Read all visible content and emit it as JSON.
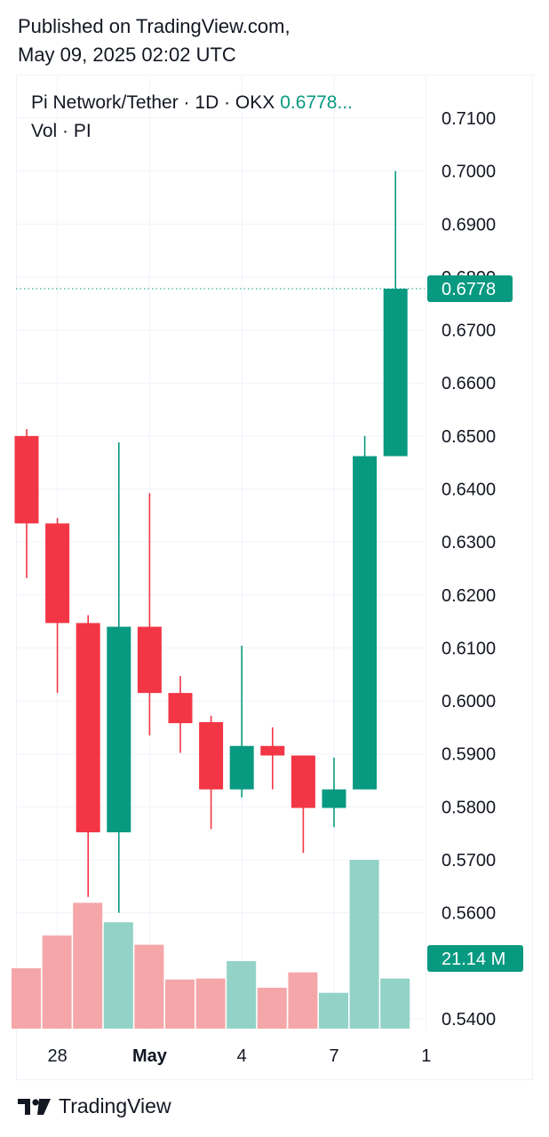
{
  "published": {
    "line1": "Published on TradingView.com,",
    "line2": "May 09, 2025 02:02 UTC"
  },
  "legend": {
    "symbol": "Pi Network/Tether · 1D · OKX",
    "last_price": "0.6778...",
    "volume_label": "Vol · PI"
  },
  "colors": {
    "up": "#089981",
    "down": "#f23645",
    "vol_up": "#92d2c7",
    "vol_down": "#f5a6a8",
    "grid": "#f0f3fa",
    "text": "#131722"
  },
  "chart_data": {
    "type": "candlestick",
    "title": "Pi Network/Tether · 1D · OKX",
    "y_ticks": [
      "0.7100",
      "0.7000",
      "0.6900",
      "0.6800",
      "0.6700",
      "0.6600",
      "0.6500",
      "0.6400",
      "0.6300",
      "0.6200",
      "0.6100",
      "0.6000",
      "0.5900",
      "0.5800",
      "0.5700",
      "0.5600",
      "0.5400"
    ],
    "ylim": [
      0.5385,
      0.712
    ],
    "x_ticks": [
      {
        "label": "28",
        "index": 1
      },
      {
        "label": "May",
        "index": 4
      },
      {
        "label": "4",
        "index": 7
      },
      {
        "label": "7",
        "index": 10
      },
      {
        "label": "1",
        "index": 13
      }
    ],
    "last_price_label": "0.6778",
    "last_price": 0.6778,
    "volume_label": "21.14 M",
    "candles": [
      {
        "open": 0.65,
        "high": 0.6513,
        "low": 0.6232,
        "close": 0.6335
      },
      {
        "open": 0.6335,
        "high": 0.6345,
        "low": 0.6015,
        "close": 0.6147
      },
      {
        "open": 0.6147,
        "high": 0.6162,
        "low": 0.563,
        "close": 0.5752
      },
      {
        "open": 0.5752,
        "high": 0.6488,
        "low": 0.56,
        "close": 0.614
      },
      {
        "open": 0.614,
        "high": 0.6392,
        "low": 0.5935,
        "close": 0.6015
      },
      {
        "open": 0.6015,
        "high": 0.6047,
        "low": 0.5902,
        "close": 0.5958
      },
      {
        "open": 0.596,
        "high": 0.5972,
        "low": 0.5758,
        "close": 0.5833
      },
      {
        "open": 0.5833,
        "high": 0.6104,
        "low": 0.5818,
        "close": 0.5915
      },
      {
        "open": 0.5915,
        "high": 0.595,
        "low": 0.5833,
        "close": 0.5897
      },
      {
        "open": 0.5897,
        "high": 0.5897,
        "low": 0.5713,
        "close": 0.5798
      },
      {
        "open": 0.5798,
        "high": 0.5893,
        "low": 0.5762,
        "close": 0.5833
      },
      {
        "open": 0.5833,
        "high": 0.65,
        "low": 0.5833,
        "close": 0.6462
      },
      {
        "open": 0.6462,
        "high": 0.7,
        "low": 0.6462,
        "close": 0.6778
      }
    ],
    "volume": [
      {
        "value": 0.59,
        "up": false
      },
      {
        "value": 0.91,
        "up": false
      },
      {
        "value": 1.23,
        "up": false
      },
      {
        "value": 1.04,
        "up": true
      },
      {
        "value": 0.82,
        "up": false
      },
      {
        "value": 0.48,
        "up": false
      },
      {
        "value": 0.49,
        "up": false
      },
      {
        "value": 0.66,
        "up": true
      },
      {
        "value": 0.4,
        "up": false
      },
      {
        "value": 0.55,
        "up": false
      },
      {
        "value": 0.35,
        "up": true
      },
      {
        "value": 1.65,
        "up": true
      },
      {
        "value": 0.49,
        "up": true
      }
    ]
  },
  "footer": {
    "brand": "TradingView"
  }
}
